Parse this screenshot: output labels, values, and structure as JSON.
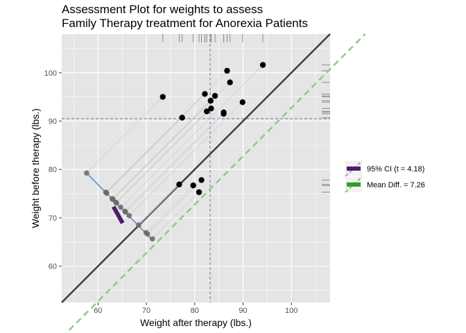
{
  "chart_data": {
    "type": "scatter",
    "title_lines": [
      "Assessment Plot for weights to assess",
      "Family Therapy treatment for Anorexia Patients"
    ],
    "xlabel": "Weight after therapy (lbs.)",
    "ylabel": "Weight before therapy (lbs.)",
    "xlim": [
      52.5,
      108
    ],
    "ylim": [
      52.5,
      108
    ],
    "xticks": [
      60,
      70,
      80,
      90,
      100
    ],
    "yticks": [
      60,
      70,
      80,
      90,
      100
    ],
    "grid": true,
    "legend_position": "right",
    "points_after": [
      73.4,
      77.4,
      76.8,
      83.4,
      79.7,
      81.4,
      82.1,
      83.3,
      82.5,
      84.2,
      86.0,
      86.0,
      86.7,
      87.3,
      89.9,
      94.1,
      80.9
    ],
    "points_before": [
      95.0,
      90.7,
      76.9,
      92.6,
      76.7,
      77.8,
      95.6,
      94.2,
      92.0,
      95.2,
      91.5,
      91.8,
      100.4,
      98.0,
      93.9,
      101.6,
      75.3
    ],
    "mean_after": 83.2,
    "mean_before": 90.5,
    "identity_line": "y = x",
    "mean_difference_line_offset": -7.26,
    "ci_t": 4.18,
    "ci_segment": [
      [
        63.2,
        72.3
      ],
      [
        65.1,
        68.9
      ]
    ],
    "projection_line": [
      [
        58.0,
        78.9
      ],
      [
        70.9,
        65.8
      ]
    ],
    "legend": [
      {
        "label": "95% CI (t = 4.18)",
        "color": "#4a1f6b"
      },
      {
        "label": "Mean Diff. = 7.26",
        "color": "#2ca02c"
      }
    ],
    "colors": {
      "panel": "#e5e5e5",
      "grid": "#ffffff",
      "points": "#000000",
      "identity": "#3d3d3d",
      "mean_diff": "#8cc98a",
      "mean_lines": "#8a7fb5",
      "projection": "#5f8fc8",
      "ci": "#4a1f6b",
      "rug": "#8c8c8c"
    }
  }
}
